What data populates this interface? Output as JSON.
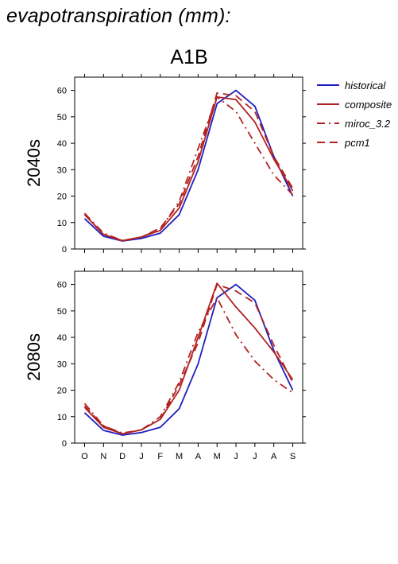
{
  "page_title": "evapotranspiration (mm):",
  "scenario_title": "A1B",
  "legend": {
    "items": [
      {
        "label": "historical",
        "color": "#1f1fbf",
        "dash": "solid"
      },
      {
        "label": "composite",
        "color": "#b22222",
        "dash": "solid"
      },
      {
        "label": "miroc_3.2",
        "color": "#b22222",
        "dash": "dash-dot"
      },
      {
        "label": "pcm1",
        "color": "#b22222",
        "dash": "dashed"
      }
    ]
  },
  "chart_data": [
    {
      "type": "line",
      "panel_label": "2040s",
      "x": [
        "O",
        "N",
        "D",
        "J",
        "F",
        "M",
        "A",
        "M",
        "J",
        "J",
        "A",
        "S"
      ],
      "ylim": [
        0,
        65
      ],
      "yticks": [
        0,
        10,
        20,
        30,
        40,
        50,
        60
      ],
      "grid": false,
      "series": [
        {
          "name": "historical",
          "values": [
            11.5,
            4.8,
            3.0,
            4.0,
            6.0,
            13.0,
            30.0,
            55.0,
            60.0,
            54.0,
            35.0,
            20.0
          ]
        },
        {
          "name": "composite",
          "values": [
            13.0,
            5.5,
            3.2,
            4.5,
            7.0,
            15.5,
            33.0,
            57.5,
            56.5,
            48.0,
            34.0,
            22.0
          ]
        },
        {
          "name": "miroc_3.2",
          "values": [
            13.5,
            6.0,
            3.2,
            4.5,
            7.5,
            18.0,
            38.0,
            57.5,
            52.0,
            40.0,
            28.0,
            20.5
          ]
        },
        {
          "name": "pcm1",
          "values": [
            13.0,
            5.5,
            3.0,
            4.5,
            8.0,
            17.0,
            35.0,
            59.0,
            58.0,
            52.0,
            35.0,
            23.0
          ]
        }
      ]
    },
    {
      "type": "line",
      "panel_label": "2080s",
      "x": [
        "O",
        "N",
        "D",
        "J",
        "F",
        "M",
        "A",
        "M",
        "J",
        "J",
        "A",
        "S"
      ],
      "ylim": [
        0,
        65
      ],
      "yticks": [
        0,
        10,
        20,
        30,
        40,
        50,
        60
      ],
      "grid": false,
      "series": [
        {
          "name": "historical",
          "values": [
            11.5,
            4.8,
            3.0,
            4.0,
            6.0,
            13.0,
            30.0,
            55.0,
            60.0,
            54.0,
            35.0,
            20.0
          ]
        },
        {
          "name": "composite",
          "values": [
            13.5,
            6.0,
            3.5,
            5.0,
            9.0,
            20.0,
            40.0,
            60.5,
            51.5,
            43.5,
            34.5,
            24.0
          ]
        },
        {
          "name": "miroc_3.2",
          "values": [
            15.0,
            6.5,
            3.8,
            5.0,
            10.0,
            23.0,
            42.0,
            55.0,
            41.0,
            31.0,
            24.0,
            19.0
          ]
        },
        {
          "name": "pcm1",
          "values": [
            14.0,
            6.5,
            3.5,
            5.0,
            9.0,
            22.0,
            38.0,
            60.0,
            57.5,
            53.0,
            37.0,
            23.0
          ]
        }
      ]
    }
  ]
}
